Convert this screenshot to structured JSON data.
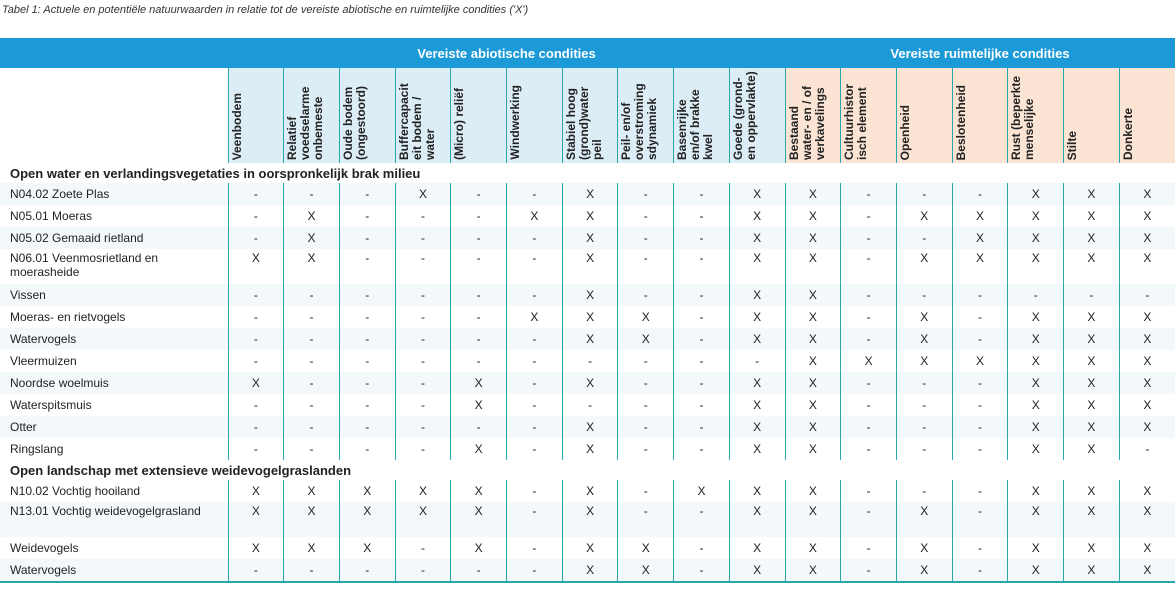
{
  "caption": "Tabel 1: Actuele en potentiële natuurwaarden in relatie tot de vereiste abiotische en ruimtelijke condities ('X')",
  "groups": {
    "abiotic": "Vereiste abiotische condities",
    "spatial": "Vereiste ruimtelijke condities"
  },
  "columns": [
    "Veenbodem",
    "Relatief voedselarme onbemeste",
    "Oude bodem (ongestoord)",
    "Buffercapacit eit bodem / water",
    "(Micro) reliëf",
    "Windwerking",
    "Stabiel hoog (grond)water peil",
    "Peil- en/of overstroming sdynamiek",
    "Basenrijke en/of brakke kwel",
    "Goede (grond- en oppervlakte)",
    "Bestaand water- en / of verkavelings",
    "Cultuurhistor isch element",
    "Openheid",
    "Beslotenheid",
    "Rust (beperkte menselijke",
    "Stilte",
    "Donkerte"
  ],
  "sections": [
    {
      "title": "Open water en verlandingsvegetaties in oorspronkelijk brak milieu",
      "rows": [
        {
          "label": "N04.02 Zoete Plas",
          "values": [
            "-",
            "-",
            "-",
            "X",
            "-",
            "-",
            "X",
            "-",
            "-",
            "X",
            "X",
            "-",
            "-",
            "-",
            "X",
            "X",
            "X"
          ]
        },
        {
          "label": "N05.01 Moeras",
          "values": [
            "-",
            "X",
            "-",
            "-",
            "-",
            "X",
            "X",
            "-",
            "-",
            "X",
            "X",
            "-",
            "X",
            "X",
            "X",
            "X",
            "X"
          ]
        },
        {
          "label": "N05.02 Gemaaid rietland",
          "values": [
            "-",
            "X",
            "-",
            "-",
            "-",
            "-",
            "X",
            "-",
            "-",
            "X",
            "X",
            "-",
            "-",
            "X",
            "X",
            "X",
            "X"
          ]
        },
        {
          "label": "N06.01 Veenmosrietland en moerasheide",
          "tall": true,
          "values": [
            "X",
            "X",
            "-",
            "-",
            "-",
            "-",
            "X",
            "-",
            "-",
            "X",
            "X",
            "-",
            "X",
            "X",
            "X",
            "X",
            "X"
          ]
        },
        {
          "label": "Vissen",
          "values": [
            "-",
            "-",
            "-",
            "-",
            "-",
            "-",
            "X",
            "-",
            "-",
            "X",
            "X",
            "-",
            "-",
            "-",
            "-",
            "-",
            "-"
          ]
        },
        {
          "label": "Moeras- en rietvogels",
          "values": [
            "-",
            "-",
            "-",
            "-",
            "-",
            "X",
            "X",
            "X",
            "-",
            "X",
            "X",
            "-",
            "X",
            "-",
            "X",
            "X",
            "X"
          ]
        },
        {
          "label": "Watervogels",
          "values": [
            "-",
            "-",
            "-",
            "-",
            "-",
            "-",
            "X",
            "X",
            "-",
            "X",
            "X",
            "-",
            "X",
            "-",
            "X",
            "X",
            "X"
          ]
        },
        {
          "label": "Vleermuizen",
          "values": [
            "-",
            "-",
            "-",
            "-",
            "-",
            "-",
            "-",
            "-",
            "-",
            "-",
            "X",
            "X",
            "X",
            "X",
            "X",
            "X",
            "X"
          ]
        },
        {
          "label": "Noordse woelmuis",
          "values": [
            "X",
            "-",
            "-",
            "-",
            "X",
            "-",
            "X",
            "-",
            "-",
            "X",
            "X",
            "-",
            "-",
            "-",
            "X",
            "X",
            "X"
          ]
        },
        {
          "label": "Waterspitsmuis",
          "values": [
            "-",
            "-",
            "-",
            "-",
            "X",
            "-",
            "-",
            "-",
            "-",
            "X",
            "X",
            "-",
            "-",
            "-",
            "X",
            "X",
            "X"
          ]
        },
        {
          "label": "Otter",
          "values": [
            "-",
            "-",
            "-",
            "-",
            "-",
            "-",
            "X",
            "-",
            "-",
            "X",
            "X",
            "-",
            "-",
            "-",
            "X",
            "X",
            "X"
          ]
        },
        {
          "label": "Ringslang",
          "values": [
            "-",
            "-",
            "-",
            "-",
            "X",
            "-",
            "X",
            "-",
            "-",
            "X",
            "X",
            "-",
            "-",
            "-",
            "X",
            "X",
            "-"
          ]
        }
      ]
    },
    {
      "title": "Open landschap met extensieve weidevogelgraslanden",
      "rows": [
        {
          "label": "N10.02 Vochtig hooiland",
          "values": [
            "X",
            "X",
            "X",
            "X",
            "X",
            "-",
            "X",
            "-",
            "X",
            "X",
            "X",
            "-",
            "-",
            "-",
            "X",
            "X",
            "X"
          ]
        },
        {
          "label": "N13.01 Vochtig weidevogelgrasland",
          "tall": true,
          "values": [
            "X",
            "X",
            "X",
            "X",
            "X",
            "-",
            "X",
            "-",
            "-",
            "X",
            "X",
            "-",
            "X",
            "-",
            "X",
            "X",
            "X"
          ]
        },
        {
          "label": "Weidevogels",
          "values": [
            "X",
            "X",
            "X",
            "-",
            "X",
            "-",
            "X",
            "X",
            "-",
            "X",
            "X",
            "-",
            "X",
            "-",
            "X",
            "X",
            "X"
          ]
        },
        {
          "label": "Watervogels",
          "values": [
            "-",
            "-",
            "-",
            "-",
            "-",
            "-",
            "X",
            "X",
            "-",
            "X",
            "X",
            "-",
            "X",
            "-",
            "X",
            "X",
            "X"
          ]
        }
      ]
    }
  ]
}
